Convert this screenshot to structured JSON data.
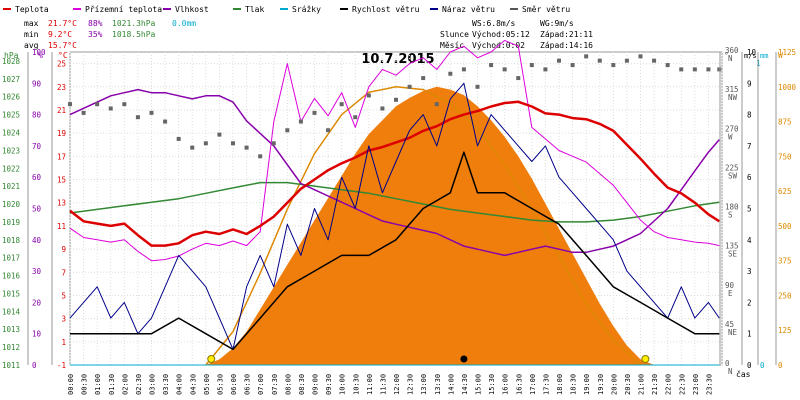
{
  "header": {
    "legend": [
      {
        "label": "Teplota",
        "color": "#dd0000"
      },
      {
        "label": "Přízemní teplota",
        "color": "#dd00dd"
      },
      {
        "label": "Vlhkost",
        "color": "#8800aa"
      },
      {
        "label": "Tlak",
        "color": "#338833"
      },
      {
        "label": "Srážky",
        "color": "#00aacc"
      },
      {
        "label": "Rychlost větru",
        "color": "#000000"
      },
      {
        "label": "Náraz větru",
        "color": "#000088"
      },
      {
        "label": "Směr větru",
        "color": "#555555"
      }
    ],
    "stats": {
      "max": {
        "label": "max",
        "temp": "21.7°C",
        "hum": "88%",
        "press": "1021.3hPa",
        "rain": "0.0mm"
      },
      "min": {
        "label": "min",
        "temp": "9.2°C",
        "hum": "35%",
        "press": "1018.5hPa"
      },
      "avg": {
        "label": "avg",
        "temp": "15.7°C"
      }
    },
    "wind": {
      "ws": "WS:6.8m/s",
      "wg": "WG:9m/s"
    },
    "sun": {
      "label": "Slunce",
      "rise": "Východ:05:12",
      "set": "Západ:21:11"
    },
    "moon": {
      "label": "Měsíc",
      "rise": "Východ:0:02",
      "set": "Západ:14:16"
    },
    "date": "10.7.2015"
  },
  "axes": {
    "hpa": {
      "unit": "hPa",
      "ticks": [
        "1011",
        "1012",
        "1013",
        "1014",
        "1015",
        "1016",
        "1017",
        "1018",
        "1019",
        "1020",
        "1021",
        "1022",
        "1023",
        "1024",
        "1025",
        "1026",
        "1027",
        "1028"
      ],
      "color": "#338833"
    },
    "pct": {
      "unit": "%",
      "ticks": [
        "0",
        "10",
        "20",
        "30",
        "40",
        "50",
        "60",
        "70",
        "80",
        "90",
        "100"
      ],
      "color": "#8800aa"
    },
    "degc": {
      "unit": "°C",
      "ticks": [
        "-1",
        "1",
        "3",
        "5",
        "7",
        "9",
        "11",
        "13",
        "15",
        "17",
        "19",
        "21",
        "23",
        "25"
      ],
      "color": "#dd0000"
    },
    "dir": {
      "unit": "°",
      "ticks": [
        "0",
        "45",
        "90",
        "135",
        "180",
        "225",
        "270",
        "315",
        "360"
      ],
      "color": "#555555"
    },
    "dir_labels": [
      "N",
      "NE",
      "E",
      "SE",
      "S",
      "SW",
      "W",
      "NW",
      "N"
    ],
    "ms": {
      "unit": "m/s",
      "ticks": [
        "0",
        "1",
        "2",
        "3",
        "4",
        "5",
        "6",
        "7",
        "8",
        "9",
        "10"
      ],
      "color": "#000000"
    },
    "mm": {
      "unit": "mm",
      "ticks": [
        "0"
      ],
      "top_tick": "1",
      "color": "#00aacc"
    },
    "wm2": {
      "unit": "W",
      "ticks": [
        "0",
        "125",
        "250",
        "375",
        "500",
        "625",
        "750",
        "875",
        "1000",
        "1125"
      ],
      "color": "#dd8800"
    },
    "time_label": "čas",
    "time_ticks": [
      "00:00",
      "00:30",
      "01:00",
      "01:30",
      "02:00",
      "02:30",
      "03:00",
      "03:30",
      "04:00",
      "04:30",
      "05:00",
      "05:30",
      "06:00",
      "06:30",
      "07:00",
      "07:30",
      "08:00",
      "08:30",
      "09:00",
      "09:30",
      "10:00",
      "10:30",
      "11:00",
      "11:30",
      "12:00",
      "12:30",
      "13:00",
      "13:30",
      "14:00",
      "14:30",
      "15:00",
      "15:30",
      "16:00",
      "16:30",
      "17:00",
      "17:30",
      "18:00",
      "18:30",
      "19:00",
      "19:30",
      "20:00",
      "20:30",
      "21:00",
      "21:30",
      "22:00",
      "22:30",
      "23:00",
      "23:30"
    ]
  },
  "chart_data": {
    "type": "line",
    "x_unit": "hour",
    "temperature_c": [
      [
        0,
        12.3
      ],
      [
        0.5,
        11.4
      ],
      [
        1,
        11.2
      ],
      [
        1.5,
        11.0
      ],
      [
        2,
        11.2
      ],
      [
        2.5,
        10.2
      ],
      [
        3,
        9.3
      ],
      [
        3.5,
        9.3
      ],
      [
        4,
        9.5
      ],
      [
        4.5,
        10.2
      ],
      [
        5,
        10.5
      ],
      [
        5.5,
        10.3
      ],
      [
        6,
        10.7
      ],
      [
        6.5,
        10.3
      ],
      [
        7,
        11.0
      ],
      [
        7.5,
        11.8
      ],
      [
        8,
        13.0
      ],
      [
        8.5,
        14.2
      ],
      [
        9,
        15.0
      ],
      [
        9.5,
        15.8
      ],
      [
        10,
        16.4
      ],
      [
        10.5,
        16.9
      ],
      [
        11,
        17.5
      ],
      [
        11.5,
        17.8
      ],
      [
        12,
        18.2
      ],
      [
        12.5,
        18.6
      ],
      [
        13,
        19.2
      ],
      [
        13.5,
        19.6
      ],
      [
        14,
        20.2
      ],
      [
        14.5,
        20.6
      ],
      [
        15,
        20.9
      ],
      [
        15.5,
        21.3
      ],
      [
        16,
        21.6
      ],
      [
        16.5,
        21.7
      ],
      [
        17,
        21.3
      ],
      [
        17.5,
        20.7
      ],
      [
        18,
        20.6
      ],
      [
        18.5,
        20.3
      ],
      [
        19,
        20.2
      ],
      [
        19.5,
        19.8
      ],
      [
        20,
        19.2
      ],
      [
        20.5,
        18.0
      ],
      [
        21,
        16.8
      ],
      [
        21.5,
        15.5
      ],
      [
        22,
        14.3
      ],
      [
        22.5,
        13.8
      ],
      [
        23,
        13.0
      ],
      [
        23.5,
        12.0
      ],
      [
        23.9,
        11.4
      ]
    ],
    "ground_temperature_c": [
      [
        0,
        10.8
      ],
      [
        0.5,
        10.0
      ],
      [
        1,
        9.8
      ],
      [
        1.5,
        9.6
      ],
      [
        2,
        9.8
      ],
      [
        2.5,
        8.8
      ],
      [
        3,
        8.0
      ],
      [
        3.5,
        8.1
      ],
      [
        4,
        8.4
      ],
      [
        4.5,
        9.0
      ],
      [
        5,
        9.5
      ],
      [
        5.5,
        9.3
      ],
      [
        6,
        9.7
      ],
      [
        6.5,
        9.3
      ],
      [
        7,
        10.5
      ],
      [
        7.5,
        20.0
      ],
      [
        8,
        25.0
      ],
      [
        8.5,
        20.0
      ],
      [
        9,
        22.0
      ],
      [
        9.5,
        20.5
      ],
      [
        10,
        22.5
      ],
      [
        10.5,
        19.5
      ],
      [
        11,
        23.0
      ],
      [
        11.5,
        24.5
      ],
      [
        12,
        24.0
      ],
      [
        12.5,
        25.0
      ],
      [
        13,
        25.5
      ],
      [
        13.5,
        24.5
      ],
      [
        14,
        26.0
      ],
      [
        14.5,
        26.5
      ],
      [
        15,
        25.5
      ],
      [
        15.5,
        26.0
      ],
      [
        16,
        27.0
      ],
      [
        16.5,
        26.5
      ],
      [
        17,
        19.5
      ],
      [
        17.5,
        18.5
      ],
      [
        18,
        17.5
      ],
      [
        18.5,
        17.0
      ],
      [
        19,
        16.5
      ],
      [
        19.5,
        15.5
      ],
      [
        20,
        14.5
      ],
      [
        20.5,
        13.0
      ],
      [
        21,
        11.5
      ],
      [
        21.5,
        10.5
      ],
      [
        22,
        10.0
      ],
      [
        22.5,
        9.8
      ],
      [
        23,
        9.6
      ],
      [
        23.5,
        9.5
      ],
      [
        23.9,
        9.3
      ]
    ],
    "humidity_pct": [
      [
        0,
        80
      ],
      [
        0.5,
        82
      ],
      [
        1,
        84
      ],
      [
        1.5,
        86
      ],
      [
        2,
        87
      ],
      [
        2.5,
        88
      ],
      [
        3,
        87
      ],
      [
        3.5,
        87
      ],
      [
        4,
        86
      ],
      [
        4.5,
        85
      ],
      [
        5,
        86
      ],
      [
        5.5,
        86
      ],
      [
        6,
        84
      ],
      [
        6.5,
        78
      ],
      [
        7,
        74
      ],
      [
        7.5,
        70
      ],
      [
        8,
        64
      ],
      [
        8.5,
        58
      ],
      [
        9,
        56
      ],
      [
        9.5,
        54
      ],
      [
        10,
        52
      ],
      [
        10.5,
        50
      ],
      [
        11,
        48
      ],
      [
        11.5,
        46
      ],
      [
        12,
        45
      ],
      [
        12.5,
        44
      ],
      [
        13,
        43
      ],
      [
        13.5,
        42
      ],
      [
        14,
        40
      ],
      [
        14.5,
        38
      ],
      [
        15,
        37
      ],
      [
        15.5,
        36
      ],
      [
        16,
        35
      ],
      [
        16.5,
        36
      ],
      [
        17,
        37
      ],
      [
        17.5,
        38
      ],
      [
        18,
        37
      ],
      [
        18.5,
        36
      ],
      [
        19,
        36
      ],
      [
        19.5,
        37
      ],
      [
        20,
        38
      ],
      [
        20.5,
        40
      ],
      [
        21,
        42
      ],
      [
        21.5,
        46
      ],
      [
        22,
        50
      ],
      [
        22.5,
        56
      ],
      [
        23,
        62
      ],
      [
        23.5,
        68
      ],
      [
        23.9,
        72
      ]
    ],
    "pressure_hpa": [
      [
        0,
        1019.5
      ],
      [
        1,
        1019.7
      ],
      [
        2,
        1019.9
      ],
      [
        3,
        1020.1
      ],
      [
        4,
        1020.3
      ],
      [
        5,
        1020.6
      ],
      [
        6,
        1020.9
      ],
      [
        7,
        1021.2
      ],
      [
        8,
        1021.2
      ],
      [
        9,
        1021.0
      ],
      [
        10,
        1020.8
      ],
      [
        11,
        1020.6
      ],
      [
        12,
        1020.3
      ],
      [
        13,
        1020.0
      ],
      [
        14,
        1019.7
      ],
      [
        15,
        1019.5
      ],
      [
        16,
        1019.3
      ],
      [
        17,
        1019.1
      ],
      [
        18,
        1019.0
      ],
      [
        19,
        1019.0
      ],
      [
        20,
        1019.1
      ],
      [
        21,
        1019.3
      ],
      [
        22,
        1019.6
      ],
      [
        23,
        1019.9
      ],
      [
        23.9,
        1020.1
      ]
    ],
    "rain_mm": [
      [
        0,
        0
      ],
      [
        23.9,
        0
      ]
    ],
    "wind_speed_ms": [
      [
        0,
        1.0
      ],
      [
        1,
        1.0
      ],
      [
        2,
        1.0
      ],
      [
        3,
        1.0
      ],
      [
        4,
        1.5
      ],
      [
        5,
        1.0
      ],
      [
        6,
        0.5
      ],
      [
        7,
        1.5
      ],
      [
        8,
        2.5
      ],
      [
        9,
        3.0
      ],
      [
        10,
        3.5
      ],
      [
        11,
        3.5
      ],
      [
        12,
        4.0
      ],
      [
        13,
        5.0
      ],
      [
        14,
        5.5
      ],
      [
        14.5,
        6.8
      ],
      [
        15,
        5.5
      ],
      [
        16,
        5.5
      ],
      [
        17,
        5.0
      ],
      [
        18,
        4.5
      ],
      [
        19,
        3.5
      ],
      [
        20,
        2.5
      ],
      [
        21,
        2.0
      ],
      [
        22,
        1.5
      ],
      [
        23,
        1.0
      ],
      [
        23.9,
        1.0
      ]
    ],
    "wind_gust_ms": [
      [
        0,
        1.5
      ],
      [
        0.5,
        2.0
      ],
      [
        1,
        2.5
      ],
      [
        1.5,
        1.5
      ],
      [
        2,
        2.0
      ],
      [
        2.5,
        1.0
      ],
      [
        3,
        1.5
      ],
      [
        3.5,
        2.5
      ],
      [
        4,
        3.5
      ],
      [
        4.5,
        3.0
      ],
      [
        5,
        2.5
      ],
      [
        5.5,
        1.5
      ],
      [
        6,
        0.5
      ],
      [
        6.5,
        2.5
      ],
      [
        7,
        3.5
      ],
      [
        7.5,
        2.5
      ],
      [
        8,
        4.5
      ],
      [
        8.5,
        3.5
      ],
      [
        9,
        5.0
      ],
      [
        9.5,
        4.0
      ],
      [
        10,
        6.0
      ],
      [
        10.5,
        5.0
      ],
      [
        11,
        7.0
      ],
      [
        11.5,
        5.5
      ],
      [
        12,
        6.5
      ],
      [
        12.5,
        7.5
      ],
      [
        13,
        8.0
      ],
      [
        13.5,
        7.0
      ],
      [
        14,
        8.5
      ],
      [
        14.5,
        9.0
      ],
      [
        15,
        7.0
      ],
      [
        15.5,
        8.0
      ],
      [
        16,
        7.5
      ],
      [
        16.5,
        7.0
      ],
      [
        17,
        6.5
      ],
      [
        17.5,
        7.0
      ],
      [
        18,
        6.0
      ],
      [
        18.5,
        5.5
      ],
      [
        19,
        5.0
      ],
      [
        19.5,
        4.5
      ],
      [
        20,
        4.0
      ],
      [
        20.5,
        3.0
      ],
      [
        21,
        2.5
      ],
      [
        21.5,
        2.0
      ],
      [
        22,
        1.5
      ],
      [
        22.5,
        2.5
      ],
      [
        23,
        1.5
      ],
      [
        23.5,
        2.0
      ],
      [
        23.9,
        1.5
      ]
    ],
    "wind_direction_deg": [
      [
        0,
        300
      ],
      [
        0.5,
        290
      ],
      [
        1,
        300
      ],
      [
        1.5,
        295
      ],
      [
        2,
        300
      ],
      [
        2.5,
        285
      ],
      [
        3,
        290
      ],
      [
        3.5,
        280
      ],
      [
        4,
        260
      ],
      [
        4.5,
        250
      ],
      [
        5,
        255
      ],
      [
        5.5,
        265
      ],
      [
        6,
        255
      ],
      [
        6.5,
        250
      ],
      [
        7,
        240
      ],
      [
        7.5,
        255
      ],
      [
        8,
        270
      ],
      [
        8.5,
        280
      ],
      [
        9,
        290
      ],
      [
        9.5,
        270
      ],
      [
        10,
        300
      ],
      [
        10.5,
        285
      ],
      [
        11,
        310
      ],
      [
        11.5,
        295
      ],
      [
        12,
        305
      ],
      [
        12.5,
        320
      ],
      [
        13,
        330
      ],
      [
        13.5,
        300
      ],
      [
        14,
        335
      ],
      [
        14.5,
        340
      ],
      [
        15,
        320
      ],
      [
        15.5,
        345
      ],
      [
        16,
        340
      ],
      [
        16.5,
        330
      ],
      [
        17,
        345
      ],
      [
        17.5,
        340
      ],
      [
        18,
        350
      ],
      [
        18.5,
        345
      ],
      [
        19,
        355
      ],
      [
        19.5,
        350
      ],
      [
        20,
        345
      ],
      [
        20.5,
        350
      ],
      [
        21,
        355
      ],
      [
        21.5,
        350
      ],
      [
        22,
        345
      ],
      [
        22.5,
        340
      ],
      [
        23,
        340
      ],
      [
        23.5,
        340
      ],
      [
        23.9,
        340
      ]
    ],
    "solar_wm2": [
      [
        0,
        0
      ],
      [
        5,
        0
      ],
      [
        5.5,
        20
      ],
      [
        6,
        60
      ],
      [
        6.5,
        120
      ],
      [
        7,
        200
      ],
      [
        7.5,
        280
      ],
      [
        8,
        360
      ],
      [
        8.5,
        440
      ],
      [
        9,
        520
      ],
      [
        9.5,
        600
      ],
      [
        10,
        680
      ],
      [
        10.5,
        760
      ],
      [
        11,
        830
      ],
      [
        11.5,
        880
      ],
      [
        12,
        930
      ],
      [
        12.5,
        960
      ],
      [
        13,
        985
      ],
      [
        13.5,
        1000
      ],
      [
        14,
        990
      ],
      [
        14.5,
        970
      ],
      [
        15,
        930
      ],
      [
        15.5,
        880
      ],
      [
        16,
        820
      ],
      [
        16.5,
        750
      ],
      [
        17,
        670
      ],
      [
        17.5,
        580
      ],
      [
        18,
        490
      ],
      [
        18.5,
        400
      ],
      [
        19,
        310
      ],
      [
        19.5,
        220
      ],
      [
        20,
        140
      ],
      [
        20.5,
        70
      ],
      [
        21,
        20
      ],
      [
        21.5,
        0
      ],
      [
        23.9,
        0
      ]
    ],
    "solar_clear_sky_wm2": [
      [
        5,
        0
      ],
      [
        6,
        120
      ],
      [
        7,
        330
      ],
      [
        8,
        560
      ],
      [
        9,
        760
      ],
      [
        10,
        900
      ],
      [
        11,
        980
      ],
      [
        12,
        1000
      ],
      [
        13,
        990
      ],
      [
        14,
        940
      ],
      [
        15,
        850
      ],
      [
        16,
        720
      ],
      [
        17,
        560
      ],
      [
        18,
        390
      ],
      [
        19,
        220
      ],
      [
        20,
        90
      ],
      [
        21,
        0
      ]
    ],
    "moon_hours": [
      0.03,
      14.27
    ],
    "sun_hours": [
      5.2,
      21.18
    ],
    "solar_noon_hour": 14.5,
    "ranges": {
      "hpa": [
        1011,
        1028.5
      ],
      "pct": [
        0,
        100
      ],
      "degc": [
        -1,
        26
      ],
      "ms": [
        0,
        10
      ],
      "dir": [
        0,
        360
      ],
      "wm2": [
        0,
        1125
      ]
    }
  }
}
